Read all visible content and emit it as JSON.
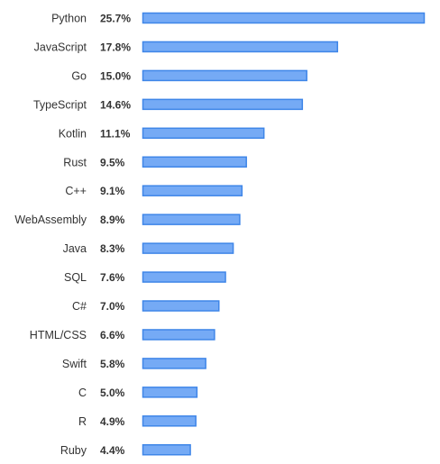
{
  "chart_data": {
    "type": "bar",
    "orientation": "horizontal",
    "categories": [
      "Python",
      "JavaScript",
      "Go",
      "TypeScript",
      "Kotlin",
      "Rust",
      "C++",
      "WebAssembly",
      "Java",
      "SQL",
      "C#",
      "HTML/CSS",
      "Swift",
      "C",
      "R",
      "Ruby"
    ],
    "values": [
      25.7,
      17.8,
      15.0,
      14.6,
      11.1,
      9.5,
      9.1,
      8.9,
      8.3,
      7.6,
      7.0,
      6.6,
      5.8,
      5.0,
      4.9,
      4.4
    ],
    "value_labels": [
      "25.7%",
      "17.8%",
      "15.0%",
      "14.6%",
      "11.1%",
      "9.5%",
      "9.1%",
      "8.9%",
      "8.3%",
      "7.6%",
      "7.0%",
      "6.6%",
      "5.8%",
      "5.0%",
      "4.9%",
      "4.4%"
    ],
    "unit": "%",
    "grid": false,
    "legend": "none",
    "colors": {
      "bar_fill": "#75aaf5",
      "bar_stroke": "#3f86e8",
      "text": "#333333"
    }
  }
}
